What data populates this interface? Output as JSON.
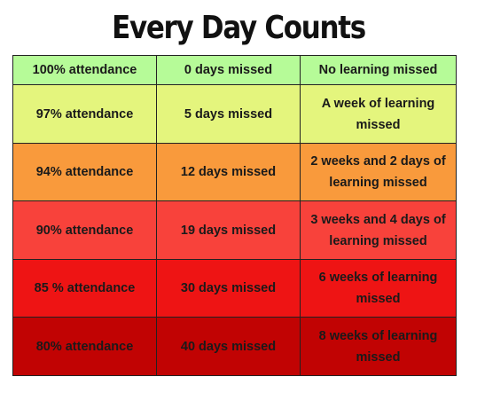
{
  "title": "Every Day Counts",
  "rows": [
    {
      "attendance": "100% attendance",
      "missed": "0 days missed",
      "learning": "No learning missed",
      "color": "#b6fb98"
    },
    {
      "attendance": "97% attendance",
      "missed": "5 days missed",
      "learning": "A week of learning missed",
      "color": "#e4f57d"
    },
    {
      "attendance": "94% attendance",
      "missed": "12 days missed",
      "learning": "2 weeks and 2 days of learning missed",
      "color": "#f99a3c"
    },
    {
      "attendance": "90% attendance",
      "missed": "19 days missed",
      "learning": "3 weeks and 4 days  of learning missed",
      "color": "#f8423b"
    },
    {
      "attendance": "85 % attendance",
      "missed": "30 days missed",
      "learning": "6 weeks of learning missed",
      "color": "#ee1414"
    },
    {
      "attendance": "80% attendance",
      "missed": "40 days missed",
      "learning": "8 weeks of learning missed",
      "color": "#c10303"
    }
  ]
}
